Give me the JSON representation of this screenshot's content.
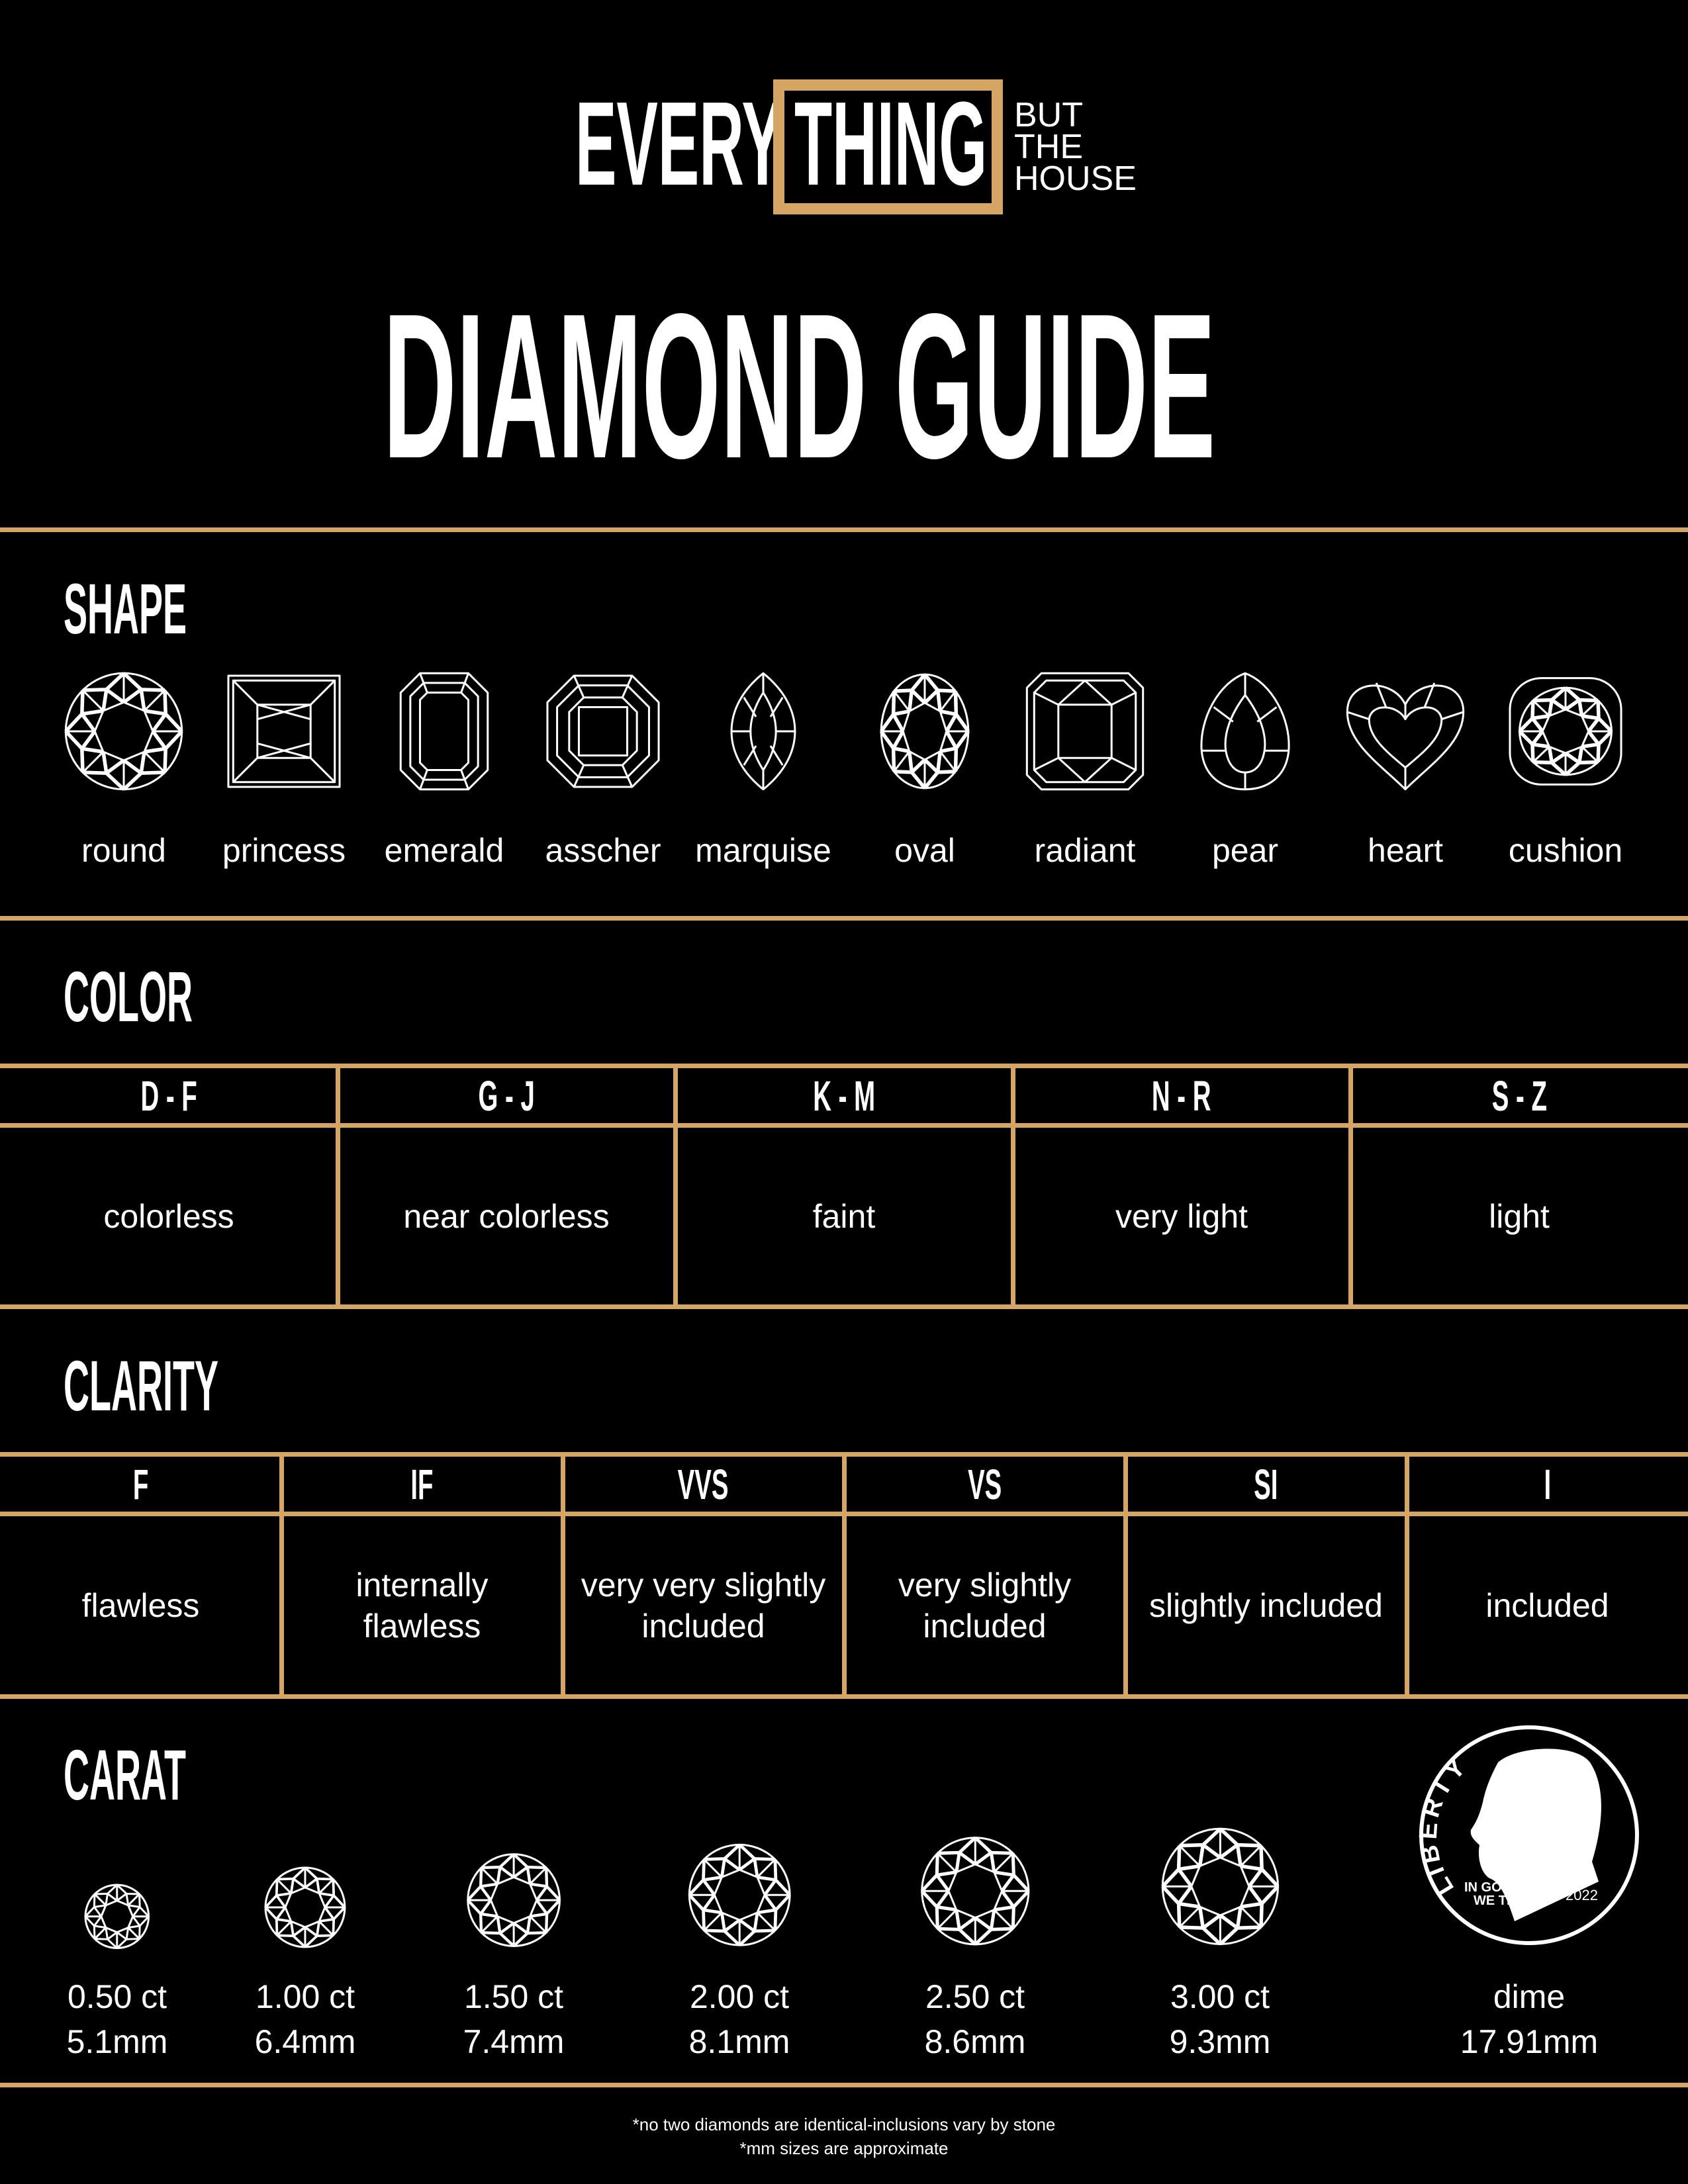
{
  "colors": {
    "background": "#000000",
    "accent": "#d4a563",
    "text": "#ffffff"
  },
  "logo": {
    "word1": "EVERY",
    "word2": "THING",
    "tag": [
      "BUT",
      "THE",
      "HOUSE"
    ]
  },
  "title": "DIAMOND GUIDE",
  "shape": {
    "heading": "SHAPE",
    "items": [
      {
        "label": "round",
        "icon": "round-diamond-icon"
      },
      {
        "label": "princess",
        "icon": "princess-diamond-icon"
      },
      {
        "label": "emerald",
        "icon": "emerald-diamond-icon"
      },
      {
        "label": "asscher",
        "icon": "asscher-diamond-icon"
      },
      {
        "label": "marquise",
        "icon": "marquise-diamond-icon"
      },
      {
        "label": "oval",
        "icon": "oval-diamond-icon"
      },
      {
        "label": "radiant",
        "icon": "radiant-diamond-icon"
      },
      {
        "label": "pear",
        "icon": "pear-diamond-icon"
      },
      {
        "label": "heart",
        "icon": "heart-diamond-icon"
      },
      {
        "label": "cushion",
        "icon": "cushion-diamond-icon"
      }
    ]
  },
  "color": {
    "heading": "COLOR",
    "columns": [
      {
        "grade": "D - F",
        "desc": "colorless"
      },
      {
        "grade": "G - J",
        "desc": "near colorless"
      },
      {
        "grade": "K - M",
        "desc": "faint"
      },
      {
        "grade": "N - R",
        "desc": "very light"
      },
      {
        "grade": "S - Z",
        "desc": "light"
      }
    ]
  },
  "clarity": {
    "heading": "CLARITY",
    "columns": [
      {
        "grade": "F",
        "desc": [
          "flawless"
        ]
      },
      {
        "grade": "IF",
        "desc": [
          "internally",
          "flawless"
        ]
      },
      {
        "grade": "VVS",
        "desc": [
          "very very slightly",
          "included"
        ]
      },
      {
        "grade": "VS",
        "desc": [
          "very slightly",
          "included"
        ]
      },
      {
        "grade": "SI",
        "desc": [
          "slightly included"
        ]
      },
      {
        "grade": "I",
        "desc": [
          "included"
        ]
      }
    ]
  },
  "carat": {
    "heading": "CARAT",
    "items": [
      {
        "weight": "0.50 ct",
        "size": "5.1mm",
        "mm": 5.1
      },
      {
        "weight": "1.00 ct",
        "size": "6.4mm",
        "mm": 6.4
      },
      {
        "weight": "1.50 ct",
        "size": "7.4mm",
        "mm": 7.4
      },
      {
        "weight": "2.00 ct",
        "size": "8.1mm",
        "mm": 8.1
      },
      {
        "weight": "2.50 ct",
        "size": "8.6mm",
        "mm": 8.6
      },
      {
        "weight": "3.00 ct",
        "size": "9.3mm",
        "mm": 9.3
      }
    ],
    "dime": {
      "label": "dime",
      "size": "17.91mm",
      "coin_text": "LIBERTY",
      "motto": [
        "IN GOD",
        "WE TRUST"
      ],
      "year": "2022"
    }
  },
  "footnotes": [
    "*no two diamonds are identical-inclusions vary by stone",
    "*mm sizes are approximate"
  ]
}
